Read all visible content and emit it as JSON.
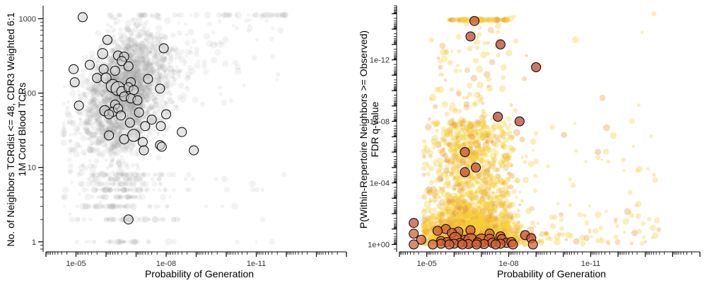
{
  "chart_data": [
    {
      "type": "scatter",
      "xlabel": "Probability of Generation",
      "ylabel_lines": [
        "No. of Neighbors TCRdist <= 48, CDR3 Weighted 6:1",
        "1M Cord Blood TCRs"
      ],
      "x_scale": "log10-reversed",
      "y_scale": "log10",
      "xlim": [
        0.0001,
        1e-14
      ],
      "ylim": [
        0.8,
        1500
      ],
      "x_ticks": [
        {
          "value": 1e-05,
          "label": "1e-05"
        },
        {
          "value": 1e-08,
          "label": "1e-08"
        },
        {
          "value": 1e-11,
          "label": "1e-11"
        }
      ],
      "y_ticks": [
        {
          "value": 1,
          "label": "1"
        },
        {
          "value": 10,
          "label": "10"
        },
        {
          "value": 100,
          "label": "100"
        },
        {
          "value": 1000,
          "label": "1000"
        }
      ],
      "grid": false,
      "colors": {
        "background_points": "#9e9e9e",
        "highlight_fill": "#cfcfcf",
        "highlight_edge": "#000000"
      },
      "highlighted_points": [
        {
          "x": 6e-06,
          "y": 1050,
          "s": 1.0
        },
        {
          "x": 9e-07,
          "y": 520,
          "s": 1.0
        },
        {
          "x": 1.2e-08,
          "y": 400,
          "s": 1.0
        },
        {
          "x": 1.3e-06,
          "y": 340,
          "s": 1.1
        },
        {
          "x": 4e-07,
          "y": 320,
          "s": 1.0
        },
        {
          "x": 2.5e-07,
          "y": 310,
          "s": 1.0
        },
        {
          "x": 3e-07,
          "y": 270,
          "s": 1.0
        },
        {
          "x": 3.5e-06,
          "y": 240,
          "s": 1.0
        },
        {
          "x": 1.2e-05,
          "y": 210,
          "s": 1.0
        },
        {
          "x": 1.8e-07,
          "y": 230,
          "s": 1.0
        },
        {
          "x": 1.2e-06,
          "y": 210,
          "s": 1.0
        },
        {
          "x": 5e-07,
          "y": 200,
          "s": 1.0
        },
        {
          "x": 2e-06,
          "y": 160,
          "s": 1.0
        },
        {
          "x": 1e-06,
          "y": 160,
          "s": 1.1
        },
        {
          "x": 1.1e-05,
          "y": 140,
          "s": 1.0
        },
        {
          "x": 4e-08,
          "y": 155,
          "s": 1.0
        },
        {
          "x": 1.5e-07,
          "y": 140,
          "s": 1.0
        },
        {
          "x": 6e-07,
          "y": 125,
          "s": 1.4
        },
        {
          "x": 4e-07,
          "y": 115,
          "s": 1.5
        },
        {
          "x": 3e-07,
          "y": 105,
          "s": 1.1
        },
        {
          "x": 1.8e-07,
          "y": 120,
          "s": 1.0
        },
        {
          "x": 1.2e-07,
          "y": 110,
          "s": 1.0
        },
        {
          "x": 1.6e-08,
          "y": 115,
          "s": 1.0
        },
        {
          "x": 2.5e-07,
          "y": 90,
          "s": 1.0
        },
        {
          "x": 1.5e-07,
          "y": 85,
          "s": 1.0
        },
        {
          "x": 9e-08,
          "y": 80,
          "s": 1.0
        },
        {
          "x": 5e-07,
          "y": 70,
          "s": 1.0
        },
        {
          "x": 8e-06,
          "y": 68,
          "s": 1.0
        },
        {
          "x": 1.1e-06,
          "y": 58,
          "s": 1.1
        },
        {
          "x": 6e-07,
          "y": 56,
          "s": 1.0
        },
        {
          "x": 8e-07,
          "y": 52,
          "s": 1.0
        },
        {
          "x": 4e-07,
          "y": 62,
          "s": 1.0
        },
        {
          "x": 3.2e-07,
          "y": 50,
          "s": 1.0
        },
        {
          "x": 8e-08,
          "y": 55,
          "s": 1.0
        },
        {
          "x": 1e-08,
          "y": 52,
          "s": 1.0
        },
        {
          "x": 3e-08,
          "y": 44,
          "s": 1.0
        },
        {
          "x": 1.6e-07,
          "y": 40,
          "s": 1.0
        },
        {
          "x": 5e-08,
          "y": 36,
          "s": 1.0
        },
        {
          "x": 1.5e-08,
          "y": 36,
          "s": 1.0
        },
        {
          "x": 3e-09,
          "y": 30,
          "s": 1.0
        },
        {
          "x": 8e-07,
          "y": 27,
          "s": 1.0
        },
        {
          "x": 1.2e-07,
          "y": 27,
          "s": 1.3
        },
        {
          "x": 2.5e-07,
          "y": 24,
          "s": 1.0
        },
        {
          "x": 6e-08,
          "y": 22,
          "s": 1.0
        },
        {
          "x": 1.6e-08,
          "y": 20,
          "s": 1.0
        },
        {
          "x": 1.4e-08,
          "y": 19,
          "s": 1.0
        },
        {
          "x": 5.5e-08,
          "y": 17,
          "s": 1.0
        },
        {
          "x": 1.2e-09,
          "y": 17,
          "s": 1.0
        },
        {
          "x": 1.8e-07,
          "y": 2,
          "s": 1.0
        }
      ]
    },
    {
      "type": "scatter",
      "xlabel": "Probability of Generation",
      "ylabel_lines": [
        "P(Within-Repertoire Neighbors >= Observed)",
        "FDR q-value"
      ],
      "x_scale": "log10-reversed",
      "y_scale": "log10-reversed",
      "xlim": [
        0.0001,
        1e-15
      ],
      "ylim": [
        2,
        3e-16
      ],
      "x_ticks": [
        {
          "value": 1e-05,
          "label": "1e-05"
        },
        {
          "value": 1e-08,
          "label": "1e-08"
        },
        {
          "value": 1e-11,
          "label": "1e-11"
        }
      ],
      "y_ticks": [
        {
          "value": 1,
          "label": "1e+00"
        },
        {
          "value": 0.0001,
          "label": "1e-04"
        },
        {
          "value": 1e-08,
          "label": "1e-08"
        },
        {
          "value": 1e-12,
          "label": "1e-12"
        }
      ],
      "grid": false,
      "colors": {
        "background_points": "#f5cf3a",
        "low_fill": "#e07b39",
        "high_fill": "#b8403a",
        "highlight_edge": "#000000"
      },
      "highlighted_points": [
        {
          "x": 1.8e-07,
          "y": 3e-15,
          "s": 1.0,
          "c": 0.6
        },
        {
          "x": 2e-08,
          "y": 1e-13,
          "s": 1.0,
          "c": 0.9
        },
        {
          "x": 2.5e-07,
          "y": 3e-14,
          "s": 1.0,
          "c": 0.9
        },
        {
          "x": 1e-09,
          "y": 3e-12,
          "s": 1.0,
          "c": 0.9
        },
        {
          "x": 2.5e-08,
          "y": 5e-09,
          "s": 1.0,
          "c": 0.9
        },
        {
          "x": 4e-09,
          "y": 1e-08,
          "s": 1.0,
          "c": 0.9
        },
        {
          "x": 4e-07,
          "y": 1e-06,
          "s": 1.0,
          "c": 0.7
        },
        {
          "x": 1.6e-07,
          "y": 1e-05,
          "s": 1.0,
          "c": 0.8
        },
        {
          "x": 4e-07,
          "y": 2e-05,
          "s": 1.0,
          "c": 0.7
        },
        {
          "x": 3e-05,
          "y": 0.04,
          "s": 1.0,
          "c": 0.7
        },
        {
          "x": 2e-06,
          "y": 0.1,
          "s": 1.0,
          "c": 0.5
        },
        {
          "x": 3e-05,
          "y": 0.2,
          "s": 1.0,
          "c": 0.4
        },
        {
          "x": 4e-06,
          "y": 0.13,
          "s": 1.0,
          "c": 0.5
        },
        {
          "x": 2.5e-07,
          "y": 0.12,
          "s": 1.0,
          "c": 0.5
        },
        {
          "x": 7e-07,
          "y": 0.15,
          "s": 1.0,
          "c": 0.5
        },
        {
          "x": 1.2e-06,
          "y": 0.18,
          "s": 1.0,
          "c": 0.5
        },
        {
          "x": 5e-08,
          "y": 0.2,
          "s": 1.0,
          "c": 0.4
        },
        {
          "x": 2.5e-09,
          "y": 0.25,
          "s": 1.0,
          "c": 0.8
        },
        {
          "x": 2e-08,
          "y": 0.3,
          "s": 1.0,
          "c": 0.5
        },
        {
          "x": 1.5e-09,
          "y": 0.4,
          "s": 1.0,
          "c": 0.8
        },
        {
          "x": 1.6e-05,
          "y": 0.5,
          "s": 1.0,
          "c": 0.4
        },
        {
          "x": 9e-07,
          "y": 0.4,
          "s": 1.3,
          "c": 0.5
        },
        {
          "x": 4e-07,
          "y": 0.5,
          "s": 1.0,
          "c": 0.4
        },
        {
          "x": 2.5e-07,
          "y": 0.55,
          "s": 1.5,
          "c": 0.6
        },
        {
          "x": 1e-07,
          "y": 0.55,
          "s": 1.4,
          "c": 0.5
        },
        {
          "x": 5e-08,
          "y": 0.5,
          "s": 1.2,
          "c": 0.4
        },
        {
          "x": 1.8e-08,
          "y": 0.45,
          "s": 1.0,
          "c": 0.5
        },
        {
          "x": 3e-06,
          "y": 0.6,
          "s": 1.0,
          "c": 0.4
        },
        {
          "x": 1.8e-06,
          "y": 0.7,
          "s": 1.0,
          "c": 0.5
        },
        {
          "x": 6e-07,
          "y": 0.8,
          "s": 1.0,
          "c": 0.4
        },
        {
          "x": 1.4e-07,
          "y": 0.75,
          "s": 1.0,
          "c": 0.5
        },
        {
          "x": 4e-08,
          "y": 0.8,
          "s": 1.0,
          "c": 0.4
        },
        {
          "x": 1.2e-08,
          "y": 0.8,
          "s": 1.0,
          "c": 0.5
        },
        {
          "x": 8e-09,
          "y": 0.7,
          "s": 1.0,
          "c": 0.4
        },
        {
          "x": 3e-06,
          "y": 0.9,
          "s": 1.0,
          "c": 0.4
        },
        {
          "x": 1e-06,
          "y": 0.9,
          "s": 1.0,
          "c": 0.4
        },
        {
          "x": 3e-07,
          "y": 0.95,
          "s": 1.0,
          "c": 0.4
        },
        {
          "x": 8e-08,
          "y": 0.95,
          "s": 1.0,
          "c": 0.4
        },
        {
          "x": 2e-08,
          "y": 0.9,
          "s": 1.0,
          "c": 0.4
        },
        {
          "x": 3e-05,
          "y": 1.0,
          "s": 1.0,
          "c": 0.4
        },
        {
          "x": 6e-06,
          "y": 1.0,
          "s": 1.0,
          "c": 0.4
        },
        {
          "x": 1.5e-06,
          "y": 1.0,
          "s": 1.0,
          "c": 0.4
        },
        {
          "x": 5e-07,
          "y": 1.0,
          "s": 1.0,
          "c": 0.4
        },
        {
          "x": 1.5e-07,
          "y": 1.0,
          "s": 1.0,
          "c": 0.4
        },
        {
          "x": 3e-08,
          "y": 1.0,
          "s": 1.0,
          "c": 0.4
        },
        {
          "x": 7e-09,
          "y": 1.0,
          "s": 1.0,
          "c": 0.4
        },
        {
          "x": 1.3e-09,
          "y": 1.0,
          "s": 1.0,
          "c": 0.4
        }
      ]
    }
  ]
}
